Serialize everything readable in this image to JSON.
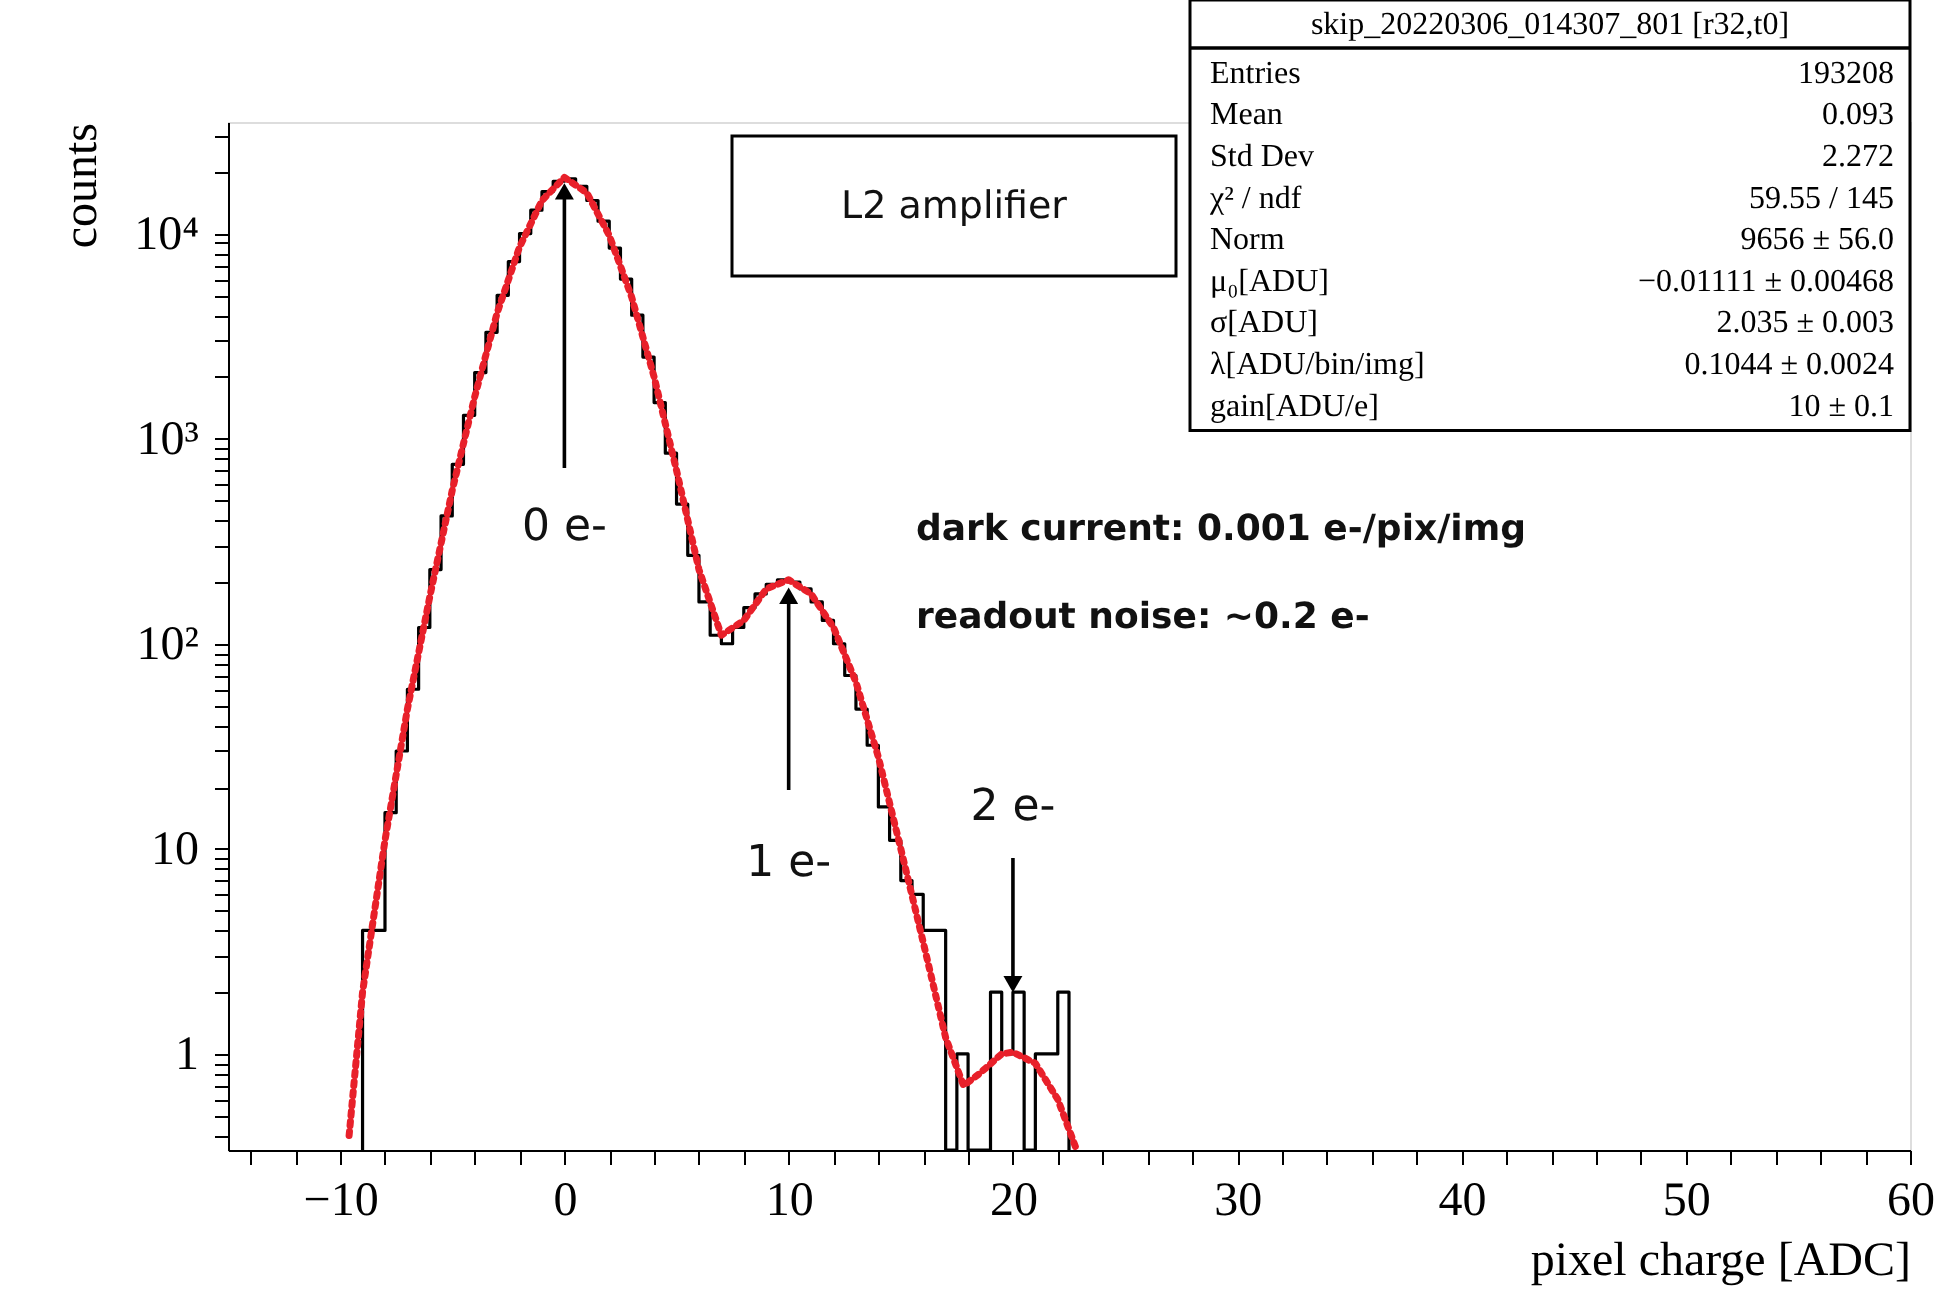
{
  "chart_data": {
    "type": "histogram",
    "xlabel": "pixel charge [ADC]",
    "ylabel": "counts",
    "log": "y",
    "grid": false,
    "xlim": [
      -15,
      60
    ],
    "xticks": [
      {
        "value": -14,
        "label": null
      },
      {
        "value": -12,
        "label": null
      },
      -10,
      {
        "value": -8,
        "label": null
      },
      {
        "value": -6,
        "label": null
      },
      {
        "value": -4,
        "label": null
      },
      {
        "value": -2,
        "label": null
      },
      0,
      {
        "value": 2,
        "label": null
      },
      {
        "value": 4,
        "label": null
      },
      {
        "value": 6,
        "label": null
      },
      {
        "value": 8,
        "label": null
      },
      10,
      {
        "value": 12,
        "label": null
      },
      {
        "value": 14,
        "label": null
      },
      {
        "value": 16,
        "label": null
      },
      {
        "value": 18,
        "label": null
      },
      20,
      {
        "value": 22,
        "label": null
      },
      {
        "value": 24,
        "label": null
      },
      {
        "value": 26,
        "label": null
      },
      {
        "value": 28,
        "label": null
      },
      30,
      {
        "value": 32,
        "label": null
      },
      {
        "value": 34,
        "label": null
      },
      {
        "value": 36,
        "label": null
      },
      {
        "value": 38,
        "label": null
      },
      40,
      {
        "value": 42,
        "label": null
      },
      {
        "value": 44,
        "label": null
      },
      {
        "value": 46,
        "label": null
      },
      {
        "value": 48,
        "label": null
      },
      50,
      {
        "value": 52,
        "label": null
      },
      {
        "value": 54,
        "label": null
      },
      {
        "value": 56,
        "label": null
      },
      {
        "value": 58,
        "label": null
      },
      60
    ],
    "ylim": [
      0.34,
      35000
    ],
    "yticks": [
      {
        "value": 0.4,
        "label": null
      },
      {
        "value": 0.5,
        "label": null
      },
      {
        "value": 0.6,
        "label": null
      },
      {
        "value": 0.7,
        "label": null
      },
      {
        "value": 0.8,
        "label": null
      },
      {
        "value": 0.9,
        "label": null
      },
      1,
      {
        "value": 2,
        "label": null
      },
      {
        "value": 3,
        "label": null
      },
      {
        "value": 4,
        "label": null
      },
      {
        "value": 5,
        "label": null
      },
      {
        "value": 6,
        "label": null
      },
      {
        "value": 7,
        "label": null
      },
      {
        "value": 8,
        "label": null
      },
      {
        "value": 9,
        "label": null
      },
      10,
      {
        "value": 20,
        "label": null
      },
      {
        "value": 30,
        "label": null
      },
      {
        "value": 40,
        "label": null
      },
      {
        "value": 50,
        "label": null
      },
      {
        "value": 60,
        "label": null
      },
      {
        "value": 70,
        "label": null
      },
      {
        "value": 80,
        "label": null
      },
      {
        "value": 90,
        "label": null
      },
      {
        "value": 100,
        "label": "10²"
      },
      {
        "value": 200,
        "label": null
      },
      {
        "value": 300,
        "label": null
      },
      {
        "value": 400,
        "label": null
      },
      {
        "value": 500,
        "label": null
      },
      {
        "value": 600,
        "label": null
      },
      {
        "value": 700,
        "label": null
      },
      {
        "value": 800,
        "label": null
      },
      {
        "value": 900,
        "label": null
      },
      {
        "value": 1000,
        "label": "10³"
      },
      {
        "value": 2000,
        "label": null
      },
      {
        "value": 3000,
        "label": null
      },
      {
        "value": 4000,
        "label": null
      },
      {
        "value": 5000,
        "label": null
      },
      {
        "value": 6000,
        "label": null
      },
      {
        "value": 7000,
        "label": null
      },
      {
        "value": 8000,
        "label": null
      },
      {
        "value": 9000,
        "label": null
      },
      {
        "value": 10000,
        "label": "10⁴"
      },
      {
        "value": 20000,
        "label": null
      },
      {
        "value": 30000,
        "label": null
      }
    ],
    "bins": [
      -9,
      -8.5,
      -8,
      -7.5,
      -7,
      -6.5,
      -6,
      -5.5,
      -5,
      -4.5,
      -4,
      -3.5,
      -3,
      -2.5,
      -2,
      -1.5,
      -1,
      -0.5,
      0,
      0.5,
      1,
      1.5,
      2,
      2.5,
      3,
      3.5,
      4,
      4.5,
      5,
      5.5,
      6,
      6.5,
      7,
      7.5,
      8,
      8.5,
      9,
      9.5,
      10,
      10.5,
      11,
      11.5,
      12,
      12.5,
      13,
      13.5,
      14,
      14.5,
      15,
      15.5,
      16,
      16.5,
      17,
      17.5,
      18,
      18.5,
      19,
      19.5,
      20,
      20.5,
      21,
      21.5,
      22,
      22.5
    ],
    "series": [
      {
        "color": "#000000",
        "values": [
          4,
          4,
          15,
          30,
          60,
          120,
          230,
          420,
          750,
          1300,
          2100,
          3300,
          5000,
          7300,
          10000,
          13000,
          16000,
          18000,
          18500,
          17000,
          14500,
          11500,
          8500,
          6000,
          4000,
          2500,
          1500,
          850,
          480,
          270,
          160,
          110,
          100,
          120,
          150,
          175,
          195,
          205,
          200,
          185,
          160,
          130,
          100,
          70,
          48,
          32,
          16,
          11,
          7,
          6,
          4,
          4,
          null,
          1,
          null,
          null,
          2,
          1,
          2,
          null,
          1,
          1,
          2
        ]
      },
      {
        "type": "line",
        "color": "#e8202a",
        "line_style": "dotted",
        "x": [
          -9.6,
          -9,
          -8,
          -7,
          -6,
          -5,
          -4,
          -3,
          -2,
          -1,
          0,
          1,
          2,
          3,
          4,
          5,
          6,
          7,
          8,
          9,
          10,
          11,
          12,
          13,
          14,
          15,
          16,
          17,
          17.8,
          18.5,
          19.5,
          20,
          21,
          22,
          22.8
        ],
        "values": [
          0.4,
          2,
          11,
          48,
          170,
          560,
          1600,
          4100,
          8600,
          14500,
          18800,
          15800,
          9800,
          4900,
          2000,
          700,
          230,
          110,
          130,
          185,
          205,
          175,
          120,
          65,
          28,
          10,
          3.5,
          1.2,
          0.7,
          0.8,
          1,
          1.02,
          0.9,
          0.6,
          0.35
        ]
      }
    ],
    "annotations": [
      "L2 amplifier",
      "dark current: 0.001 e-/pix/img",
      "readout noise: ~0.2 e-",
      "skip_20220306_014307_801 [r32,t0]",
      "Entries",
      "193208",
      "Mean",
      "0.093",
      "Std Dev",
      "2.272",
      "χ² / ndf",
      "59.55 / 145",
      "Norm",
      "9656 ± 56.0",
      "μ₀[ADU]",
      "−0.01111 ± 0.00468",
      "σ[ADU]",
      "2.035 ± 0.003",
      "λ[ADU/bin/img]",
      "0.1044 ± 0.0024",
      "gain[ADU/e]",
      "10 ± 0.1",
      {
        "text": "0 e-",
        "x": 0,
        "y": 18800
      },
      {
        "text": "1 e-",
        "x": 10,
        "y": 205
      },
      {
        "text": "2 e-",
        "x": 20,
        "y": 2
      }
    ]
  }
}
